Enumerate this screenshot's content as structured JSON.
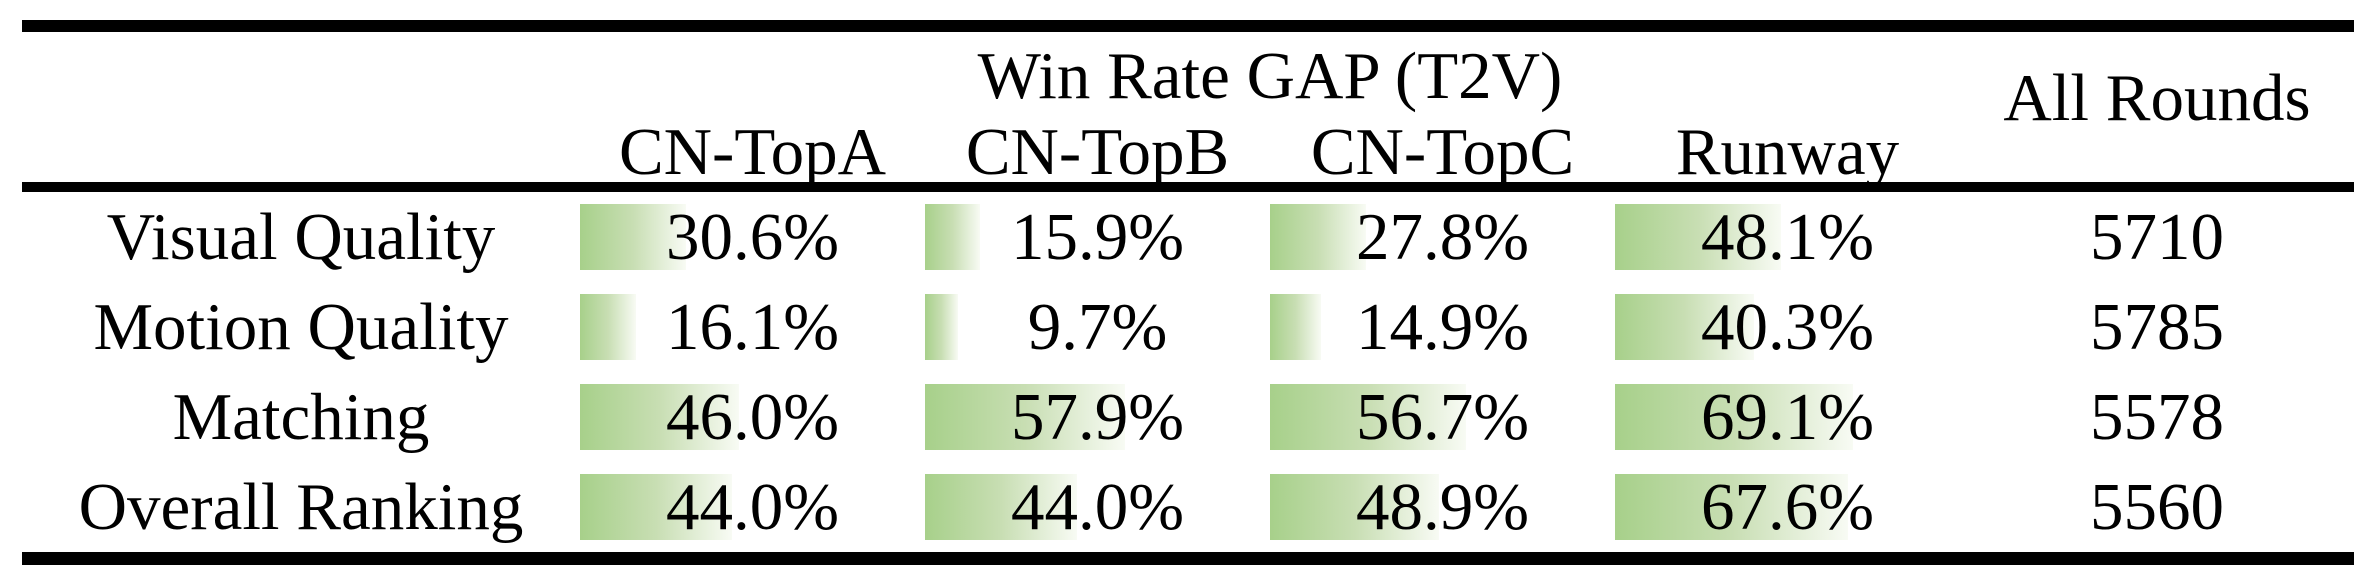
{
  "table": {
    "header": {
      "group_title": "Win Rate GAP (T2V)",
      "columns": [
        "CN-TopA",
        "CN-TopB",
        "CN-TopC",
        "Runway"
      ],
      "all_rounds_label": "All Rounds"
    },
    "rows": [
      {
        "label": "Visual Quality",
        "cells": [
          "30.6%",
          "15.9%",
          "27.8%",
          "48.1%"
        ],
        "bars": [
          30.6,
          15.9,
          27.8,
          48.1
        ],
        "all_rounds": "5710"
      },
      {
        "label": "Motion Quality",
        "cells": [
          "16.1%",
          "9.7%",
          "14.9%",
          "40.3%"
        ],
        "bars": [
          16.1,
          9.7,
          14.9,
          40.3
        ],
        "all_rounds": "5785"
      },
      {
        "label": "Matching",
        "cells": [
          "46.0%",
          "57.9%",
          "56.7%",
          "69.1%"
        ],
        "bars": [
          46.0,
          57.9,
          56.7,
          69.1
        ],
        "all_rounds": "5578"
      },
      {
        "label": "Overall Ranking",
        "cells": [
          "44.0%",
          "44.0%",
          "48.9%",
          "67.6%"
        ],
        "bars": [
          44.0,
          44.0,
          48.9,
          67.6
        ],
        "all_rounds": "5560"
      }
    ]
  },
  "colors": {
    "background": "#ffffff",
    "rule": "#000000",
    "text": "#000000",
    "bar_gradient_start": "#a7d08a",
    "bar_gradient_mid": "#c8deb3",
    "bar_gradient_end": "#f8fbf4"
  },
  "chart_data": {
    "type": "table",
    "title": "Win Rate GAP (T2V)",
    "row_labels": [
      "Visual Quality",
      "Motion Quality",
      "Matching",
      "Overall Ranking"
    ],
    "columns": [
      "CN-TopA",
      "CN-TopB",
      "CN-TopC",
      "Runway",
      "All Rounds"
    ],
    "series": [
      {
        "name": "Visual Quality",
        "values": [
          30.6,
          15.9,
          27.8,
          48.1
        ],
        "all_rounds": 5710
      },
      {
        "name": "Motion Quality",
        "values": [
          16.1,
          9.7,
          14.9,
          40.3
        ],
        "all_rounds": 5785
      },
      {
        "name": "Matching",
        "values": [
          46.0,
          57.9,
          56.7,
          69.1
        ],
        "all_rounds": 5578
      },
      {
        "name": "Overall Ranking",
        "values": [
          44.0,
          44.0,
          48.9,
          67.6
        ],
        "all_rounds": 5560
      }
    ],
    "bar_value_unit": "%",
    "bar_scale_max": 100,
    "notes": "green gradient data bars behind percentage cells, width proportional to value"
  }
}
